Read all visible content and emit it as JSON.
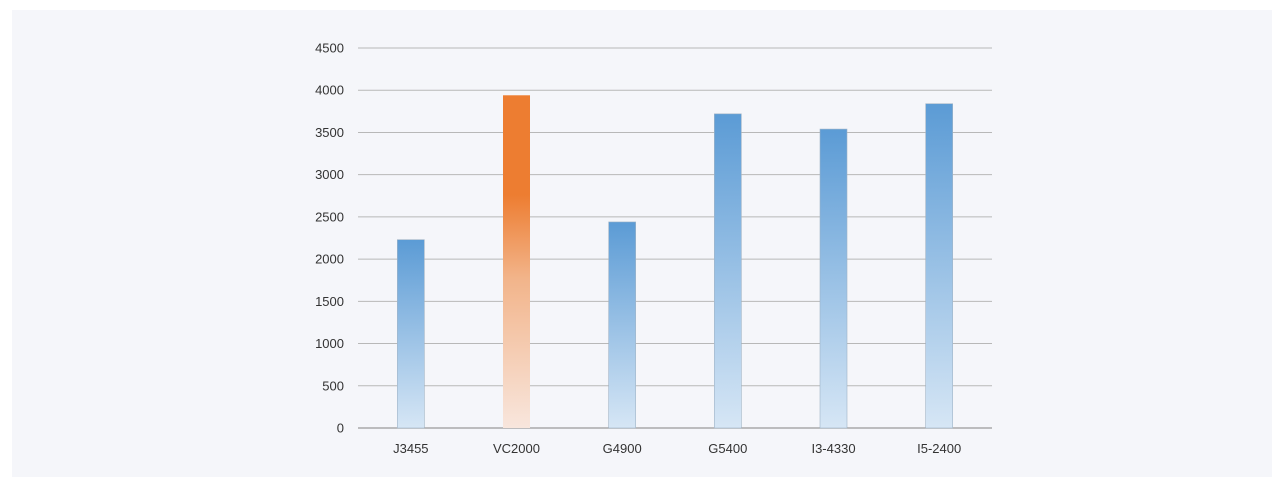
{
  "chart_data": {
    "type": "bar",
    "categories": [
      "J3455",
      "VC2000",
      "G4900",
      "G5400",
      "I3-4330",
      "I5-2400"
    ],
    "values": [
      2230,
      3940,
      2440,
      3720,
      3540,
      3840
    ],
    "highlight_index": 1,
    "title": "",
    "xlabel": "",
    "ylabel": "",
    "ylim": [
      0,
      4500
    ],
    "yticks": [
      0,
      500,
      1000,
      1500,
      2000,
      2500,
      3000,
      3500,
      4000,
      4500
    ],
    "grid": true,
    "legend": "none",
    "colors": {
      "bar_top": "#5b9bd5",
      "bar_bottom": "#d6e6f5",
      "highlight_top": "#ed7d31",
      "highlight_mid": "#f2b48a",
      "highlight_bottom": "#f8e6dd",
      "background": "#f5f6fa"
    }
  }
}
